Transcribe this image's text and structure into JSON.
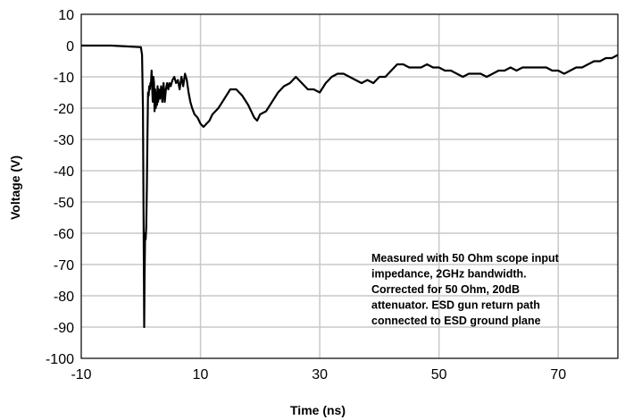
{
  "chart_data": {
    "type": "line",
    "xlabel": "Time (ns)",
    "ylabel": "Voltage (V)",
    "xlim": [
      -10,
      80
    ],
    "ylim": [
      -100,
      10
    ],
    "x_ticks": [
      -10,
      10,
      30,
      50,
      70
    ],
    "y_ticks": [
      10,
      0,
      -10,
      -20,
      -30,
      -40,
      -50,
      -60,
      -70,
      -80,
      -90,
      -100
    ],
    "x_tick_labels": [
      "-10",
      "10",
      "30",
      "50",
      "70"
    ],
    "y_tick_labels": [
      "10",
      "0",
      "-10",
      "-20",
      "-30",
      "-40",
      "-50",
      "-60",
      "-70",
      "-80",
      "-90",
      "-100"
    ],
    "grid": true,
    "line_color": "#000000",
    "grid_color": "#c8c8c8",
    "annotation": [
      "Measured with 50 Ohm scope input",
      "impedance, 2GHz bandwidth.",
      "Corrected for 50 Ohm, 20dB",
      "attenuator. ESD gun return path",
      "connected to ESD ground plane"
    ],
    "series": [
      {
        "x": [
          -10,
          -5,
          0,
          0.2,
          0.35,
          0.45,
          0.55,
          0.62,
          0.7,
          0.8,
          0.9,
          1.0,
          1.1,
          1.2,
          1.3,
          1.4,
          1.5,
          1.6,
          1.7,
          1.8,
          1.9,
          2.0,
          2.1,
          2.2,
          2.3,
          2.4,
          2.5,
          2.6,
          2.7,
          2.8,
          2.9,
          3.0,
          3.2,
          3.4,
          3.6,
          3.8,
          4.0,
          4.2,
          4.4,
          4.6,
          4.8,
          5.0,
          5.3,
          5.6,
          5.9,
          6.2,
          6.5,
          6.8,
          7.1,
          7.4,
          7.7,
          8.0,
          8.3,
          8.6,
          9.0,
          9.5,
          10.0,
          10.5,
          11.0,
          11.5,
          12.0,
          13.0,
          14.0,
          15.0,
          16.0,
          17.0,
          18.0,
          19.0,
          19.5,
          20.0,
          21.0,
          22.0,
          23.0,
          24.0,
          25.0,
          26.0,
          27.0,
          28.0,
          29.0,
          30.0,
          31.0,
          32.0,
          33.0,
          34.0,
          35.0,
          36.0,
          37.0,
          38.0,
          39.0,
          40.0,
          41.0,
          42.0,
          43.0,
          44.0,
          45.0,
          46.0,
          47.0,
          48.0,
          49.0,
          50.0,
          51.0,
          52.0,
          53.0,
          54.0,
          55.0,
          56.0,
          57.0,
          58.0,
          59.0,
          60.0,
          61.0,
          62.0,
          63.0,
          64.0,
          65.0,
          66.0,
          67.0,
          68.0,
          69.0,
          70.0,
          71.0,
          72.0,
          73.0,
          74.0,
          75.0,
          76.0,
          77.0,
          78.0,
          79.0,
          80.0
        ],
        "values": [
          0,
          0,
          -0.5,
          -3,
          -20,
          -55,
          -90,
          -75,
          -60,
          -62,
          -58,
          -45,
          -30,
          -15,
          -16,
          -13,
          -14,
          -12,
          -12,
          -8,
          -14,
          -18,
          -10,
          -12,
          -21,
          -14,
          -20,
          -15,
          -19,
          -13,
          -18,
          -14,
          -17,
          -13,
          -18,
          -12,
          -18,
          -14,
          -12,
          -14,
          -12,
          -13,
          -11,
          -10,
          -12,
          -11,
          -14,
          -10,
          -13,
          -9,
          -11,
          -15,
          -18,
          -20,
          -22,
          -23,
          -25,
          -26,
          -25,
          -24,
          -22,
          -20,
          -17,
          -14,
          -14,
          -16,
          -19,
          -23,
          -24,
          -22,
          -21,
          -18,
          -15,
          -13,
          -12,
          -10,
          -12,
          -14,
          -14,
          -15,
          -12,
          -10,
          -9,
          -9,
          -10,
          -11,
          -12,
          -11,
          -12,
          -10,
          -10,
          -8,
          -6,
          -6,
          -7,
          -7,
          -7,
          -6,
          -7,
          -7,
          -8,
          -8,
          -9,
          -10,
          -9,
          -9,
          -9,
          -10,
          -9,
          -8,
          -8,
          -7,
          -8,
          -7,
          -7,
          -7,
          -7,
          -7,
          -8,
          -8,
          -9,
          -8,
          -7,
          -7,
          -6,
          -5,
          -5,
          -4,
          -4,
          -3
        ]
      }
    ]
  }
}
